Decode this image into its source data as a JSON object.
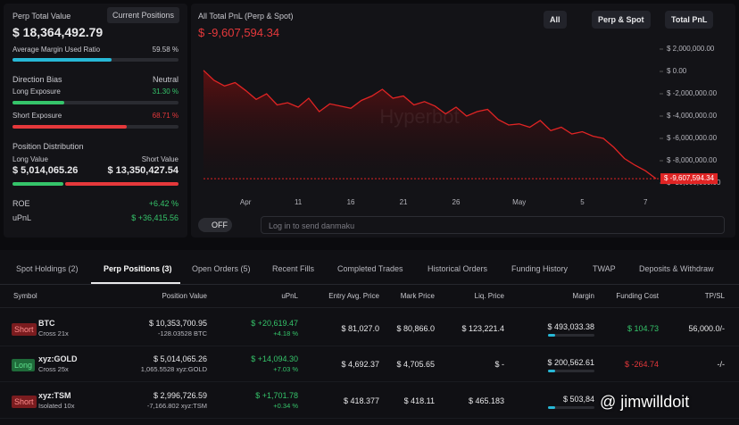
{
  "summary": {
    "title": "Perp Total Value",
    "button": "Current Positions",
    "total": "$ 18,364,492.79",
    "margin_label": "Average Margin Used Ratio",
    "margin_value": "59.58 %",
    "bias_label": "Direction Bias",
    "bias_value": "Neutral",
    "long_label": "Long Exposure",
    "long_value": "31.30 %",
    "short_label": "Short Exposure",
    "short_value": "68.71 %",
    "dist_label": "Position Distribution",
    "long_value_label": "Long Value",
    "short_value_label": "Short Value",
    "long_amount": "$ 5,014,065.26",
    "short_amount": "$ 13,350,427.54",
    "roe_label": "ROE",
    "roe_value": "+6.42 %",
    "upnl_label": "uPnL",
    "upnl_value": "$ +36,415.56"
  },
  "chart_header": {
    "title": "All Total PnL (Perp & Spot)",
    "value": "$ -9,607,594.34",
    "filters": [
      "All",
      "Perp & Spot",
      "Total PnL"
    ],
    "toggle": "OFF",
    "input_placeholder": "Log in to send danmaku",
    "watermark": "Hyperbot"
  },
  "chart_data": {
    "type": "line",
    "categories": [
      null,
      null,
      null,
      null,
      "Apr",
      null,
      null,
      null,
      null,
      "11",
      null,
      null,
      null,
      null,
      "16",
      null,
      null,
      null,
      null,
      "21",
      null,
      null,
      null,
      null,
      "26",
      null,
      null,
      null,
      null,
      null,
      "May",
      null,
      null,
      null,
      null,
      null,
      "5",
      null,
      null,
      null,
      null,
      null,
      "7",
      null
    ],
    "series": [
      {
        "color": "#e02424",
        "values": [
          100000,
          -800000,
          -1300000,
          -1000000,
          -1700000,
          -2500000,
          -2000000,
          -3000000,
          -2800000,
          -3200000,
          -2400000,
          -3600000,
          -2900000,
          -3100000,
          -3300000,
          -2600000,
          -2200000,
          -1600000,
          -2400000,
          -2200000,
          -3000000,
          -2700000,
          -3100000,
          -3800000,
          -3200000,
          -4000000,
          -3600000,
          -3400000,
          -4300000,
          -4800000,
          -4700000,
          -5000000,
          -4400000,
          -5300000,
          -5000000,
          -5600000,
          -5400000,
          -5800000,
          -6000000,
          -6800000,
          -7800000,
          -8400000,
          -8900000,
          -9607594.34
        ]
      }
    ],
    "annotation": "$ -9,607,594.34",
    "ylim": [
      -10000000,
      2000000
    ],
    "yticks": [
      {
        "value": 2000000,
        "label": "$ 2,000,000.00"
      },
      {
        "value": 0,
        "label": "$ 0.00"
      },
      {
        "value": -2000000,
        "label": "$ -2,000,000.00"
      },
      {
        "value": -4000000,
        "label": "$ -4,000,000.00"
      },
      {
        "value": -6000000,
        "label": "$ -6,000,000.00"
      },
      {
        "value": -8000000,
        "label": "$ -8,000,000.00"
      },
      {
        "value": -10000000,
        "label": "$ -10,000,000.00"
      }
    ]
  },
  "tabs": [
    "Spot Holdings (2)",
    "Perp Positions (3)",
    "Open Orders (5)",
    "Recent Fills",
    "Completed Trades",
    "Historical Orders",
    "Funding History",
    "TWAP",
    "Deposits & Withdraw"
  ],
  "table": {
    "columns": [
      "Symbol",
      "Position Value",
      "uPnL",
      "Entry Avg. Price",
      "Mark Price",
      "Liq. Price",
      "Margin",
      "Funding Cost",
      "TP/SL"
    ],
    "rows": [
      {
        "side": "Short",
        "symbol": "BTC",
        "leverage": "Cross 21x",
        "value": "$ 10,353,700.95",
        "size": "-128.03528 BTC",
        "upnl": "$ +20,619.47",
        "upnl_pct": "+4.18 %",
        "entry": "$ 81,027.0",
        "mark": "$ 80,866.0",
        "liq": "$ 123,221.4",
        "margin": "$ 493,033.38",
        "funding": "$ 104.73",
        "tpsl": "56,000.0/-"
      },
      {
        "side": "Long",
        "symbol": "xyz:GOLD",
        "leverage": "Cross 25x",
        "value": "$ 5,014,065.26",
        "size": "1,065.5528 xyz:GOLD",
        "upnl": "$ +14,094.30",
        "upnl_pct": "+7.03 %",
        "entry": "$ 4,692.37",
        "mark": "$ 4,705.65",
        "liq": "$ -",
        "margin": "$ 200,562.61",
        "funding": "$ -264.74",
        "tpsl": "-/-"
      },
      {
        "side": "Short",
        "symbol": "xyz:TSM",
        "leverage": "Isolated 10x",
        "value": "$ 2,996,726.59",
        "size": "-7,166.802 xyz:TSM",
        "upnl": "$ +1,701.78",
        "upnl_pct": "+0.34 %",
        "entry": "$ 418.377",
        "mark": "$ 418.11",
        "liq": "$ 465.183",
        "margin": "$ 503,84"
      }
    ]
  },
  "overlay_watermark": "@ jimwilldoit"
}
